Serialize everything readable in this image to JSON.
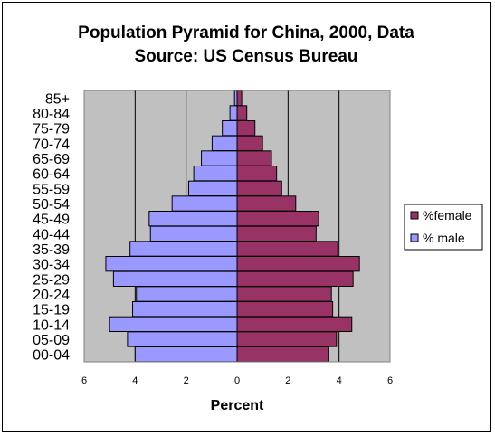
{
  "chart_data": {
    "type": "bar",
    "orientation": "horizontal",
    "title": "Population Pyramid for China, 2000, Data Source: US Census Bureau",
    "title_lines": [
      "Population Pyramid for China, 2000, Data",
      "Source: US Census Bureau"
    ],
    "xlabel": "Percent",
    "ylabel": "",
    "xlim": [
      -6,
      6
    ],
    "x_ticks": [
      6,
      4,
      2,
      0,
      2,
      4,
      6
    ],
    "grid": true,
    "legend_position": "right",
    "categories": [
      "00-04",
      "05-09",
      "10-14",
      "15-19",
      "20-24",
      "25-29",
      "30-34",
      "35-39",
      "40-44",
      "45-49",
      "50-54",
      "55-59",
      "60-64",
      "65-69",
      "70-74",
      "75-79",
      "80-84",
      "85+"
    ],
    "series": [
      {
        "name": "%female",
        "color": "#993366",
        "values": [
          3.6,
          3.9,
          4.5,
          3.75,
          3.7,
          4.55,
          4.8,
          3.95,
          3.1,
          3.2,
          2.3,
          1.75,
          1.55,
          1.35,
          1.0,
          0.7,
          0.38,
          0.18
        ]
      },
      {
        "name": "% male",
        "color": "#9999ff",
        "values": [
          -4.0,
          -4.3,
          -5.0,
          -4.1,
          -3.95,
          -4.85,
          -5.15,
          -4.2,
          -3.4,
          -3.45,
          -2.55,
          -1.9,
          -1.7,
          -1.4,
          -0.98,
          -0.58,
          -0.28,
          -0.1
        ]
      }
    ],
    "plot_background": "#c0c0c0"
  }
}
